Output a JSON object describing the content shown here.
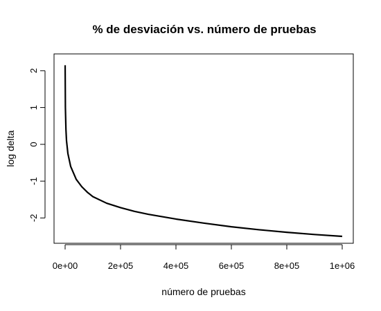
{
  "chart_data": {
    "type": "line",
    "title": "% de desviación vs. número de pruebas",
    "xlabel": "número de pruebas",
    "ylabel": "log delta",
    "xlim": [
      0,
      1000000
    ],
    "ylim": [
      -2.5,
      2.1
    ],
    "x_ticks": [
      0,
      200000,
      400000,
      600000,
      800000,
      1000000
    ],
    "x_tick_labels": [
      "0e+00",
      "2e+05",
      "4e+05",
      "6e+05",
      "8e+05",
      "1e+06"
    ],
    "y_ticks": [
      -2,
      -1,
      0,
      1,
      2
    ],
    "y_tick_labels": [
      "-2",
      "-1",
      "0",
      "1",
      "2"
    ],
    "grid": false,
    "series": [
      {
        "x": [
          100,
          1000,
          3000,
          5000,
          10000,
          20000,
          40000,
          60000,
          80000,
          100000,
          150000,
          200000,
          250000,
          300000,
          400000,
          500000,
          600000,
          700000,
          800000,
          900000,
          1000000
        ],
        "y": [
          2.15,
          1.0,
          0.4,
          0.1,
          -0.25,
          -0.6,
          -0.95,
          -1.15,
          -1.3,
          -1.42,
          -1.6,
          -1.72,
          -1.82,
          -1.9,
          -2.03,
          -2.14,
          -2.24,
          -2.32,
          -2.39,
          -2.45,
          -2.5
        ]
      }
    ]
  }
}
